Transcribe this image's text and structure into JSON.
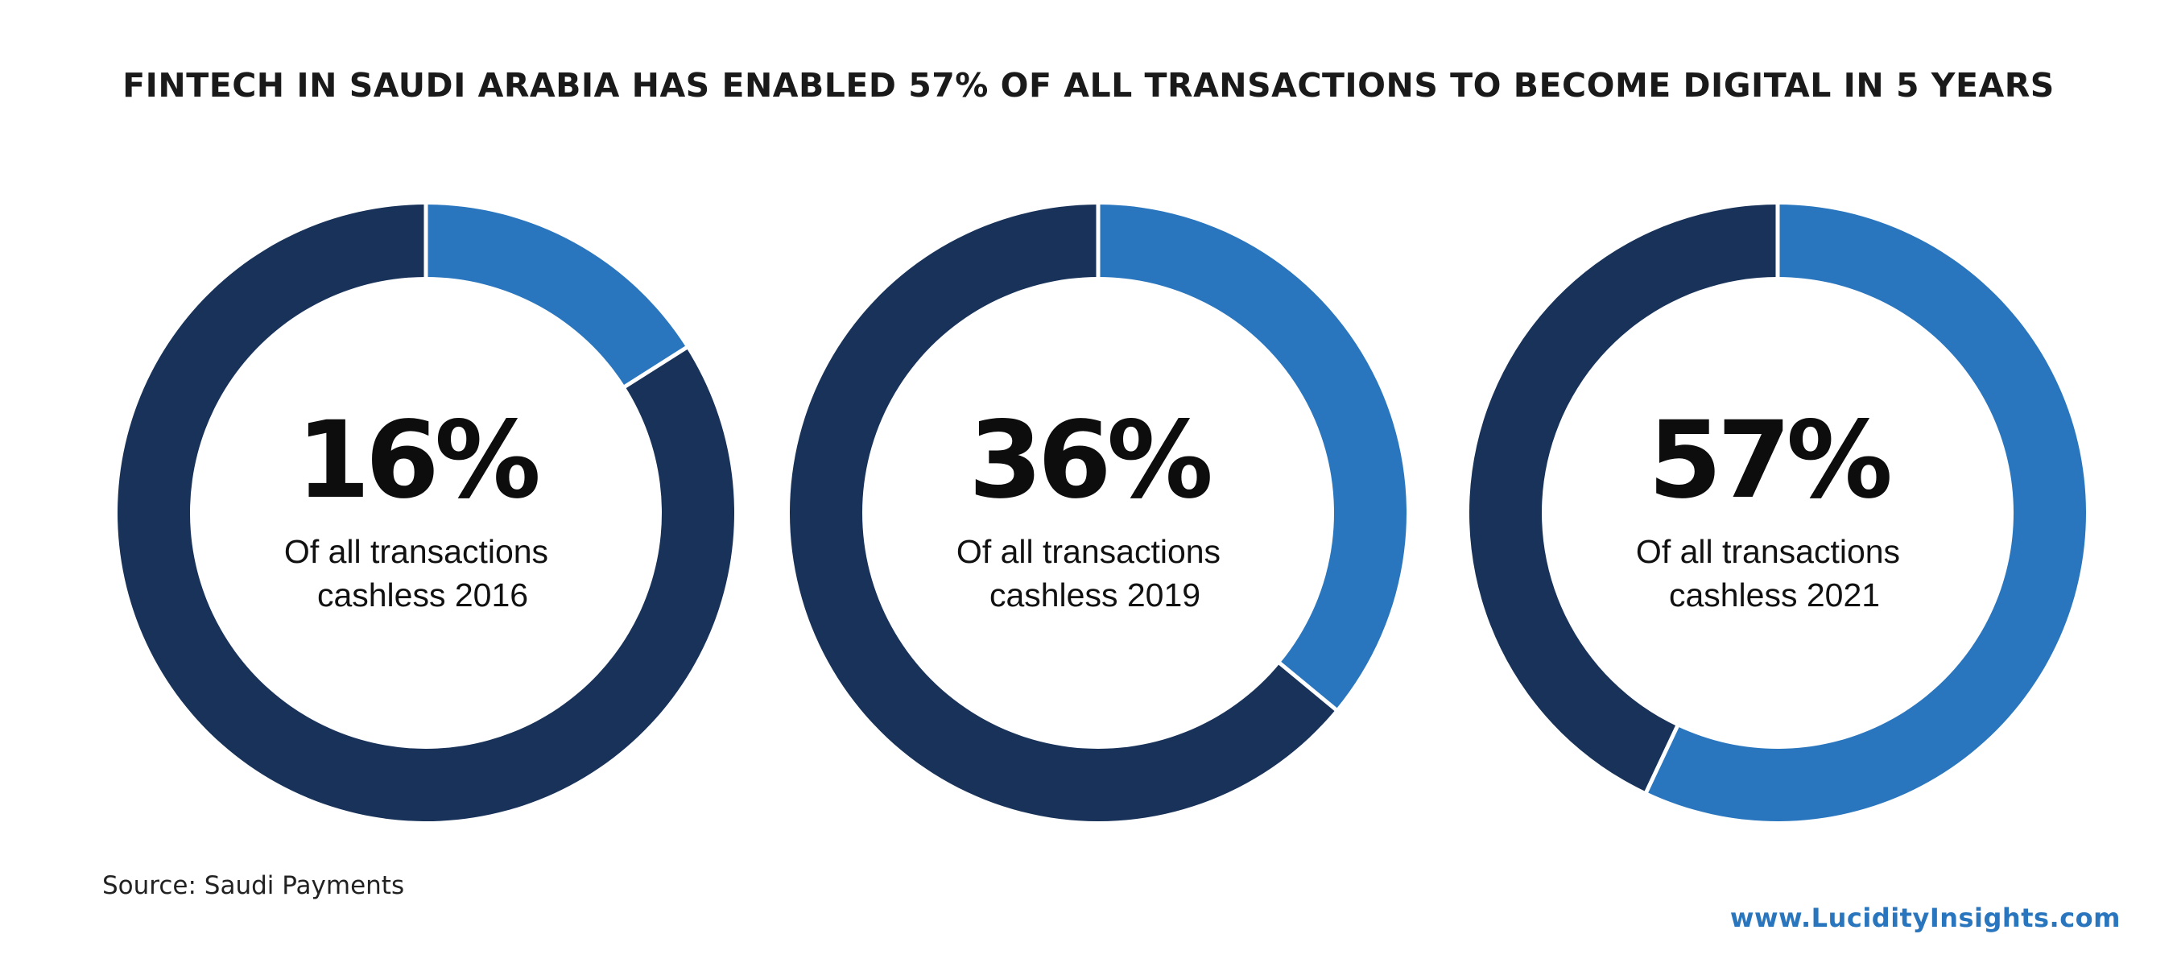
{
  "title": "FINTECH IN SAUDI ARABIA HAS ENABLED 57% OF ALL TRANSACTIONS TO BECOME DIGITAL IN 5 YEARS",
  "source": "Source: Saudi Payments",
  "website": "www.LucidityInsights.com",
  "colors": {
    "cashless": "#2a76be",
    "remaining": "#18325a",
    "website": "#2a76be"
  },
  "chart_data": {
    "type": "pie",
    "charts": [
      {
        "value": 16,
        "label": "16%",
        "caption_line1": "Of all transactions",
        "caption_line2": "cashless 2016"
      },
      {
        "value": 36,
        "label": "36%",
        "caption_line1": "Of all transactions",
        "caption_line2": "cashless 2019"
      },
      {
        "value": 57,
        "label": "57%",
        "caption_line1": "Of all transactions",
        "caption_line2": "cashless 2021"
      }
    ]
  }
}
